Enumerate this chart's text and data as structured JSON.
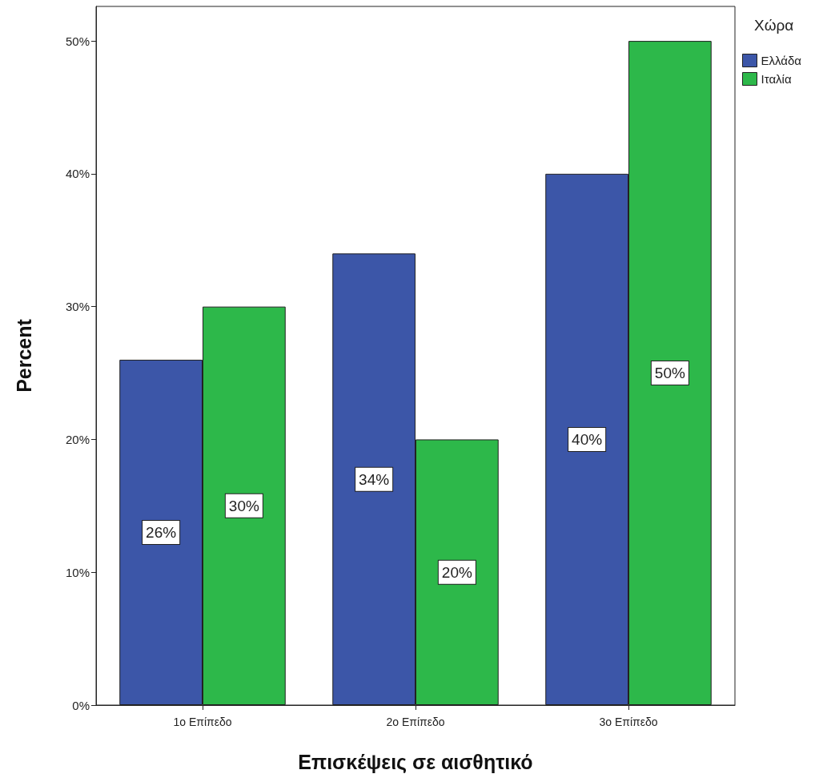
{
  "chart_data": {
    "type": "bar",
    "xlabel": "Επισκέψεις σε αισθητικό",
    "ylabel": "Percent",
    "legend_title": "Χώρα",
    "categories": [
      "1ο Επίπεδο",
      "2ο Επίπεδο",
      "3ο Επίπεδο"
    ],
    "series": [
      {
        "name": "Ελλάδα",
        "color": "#3c56a8",
        "values": [
          26,
          34,
          40
        ],
        "value_labels": [
          "26%",
          "34%",
          "40%"
        ]
      },
      {
        "name": "Ιταλία",
        "color": "#2db84a",
        "values": [
          30,
          20,
          50
        ],
        "value_labels": [
          "30%",
          "20%",
          "50%"
        ]
      }
    ],
    "ylim": [
      0,
      52.6
    ],
    "yticks": [
      {
        "value": 0,
        "label": "0%"
      },
      {
        "value": 10,
        "label": "10%"
      },
      {
        "value": 20,
        "label": "20%"
      },
      {
        "value": 30,
        "label": "30%"
      },
      {
        "value": 40,
        "label": "40%"
      },
      {
        "value": 50,
        "label": "50%"
      }
    ],
    "grid": false,
    "legend": "top right"
  }
}
